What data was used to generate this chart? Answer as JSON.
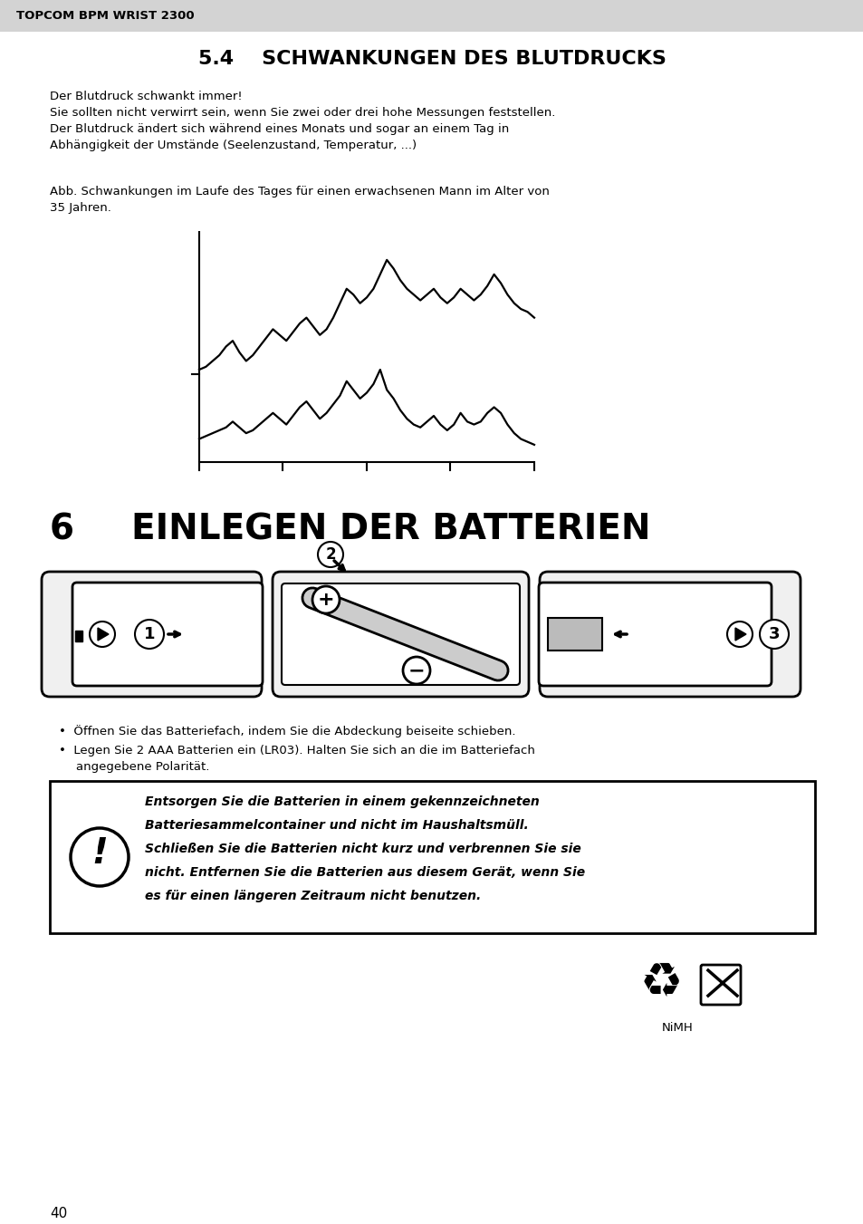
{
  "bg_color": "#ffffff",
  "header_bg": "#d3d3d3",
  "header_text": "TOPCOM BPM WRIST 2300",
  "section_title_num": "5.4",
  "section_title_text": "SCHWANKUNGEN DES BLUTDRUCKS",
  "para1_lines": [
    "Der Blutdruck schwankt immer!",
    "Sie sollten nicht verwirrt sein, wenn Sie zwei oder drei hohe Messungen feststellen.",
    "Der Blutdruck ändert sich während eines Monats und sogar an einem Tag in",
    "Abhängigkeit der Umstände (Seelenzustand, Temperatur, ...)"
  ],
  "para2_lines": [
    "Abb. Schwankungen im Laufe des Tages für einen erwachsenen Mann im Alter von",
    "35 Jahren."
  ],
  "section2_num": "6",
  "section2_text": "EINLEGEN DER BATTERIEN",
  "bullet1": "•  Öffnen Sie das Batteriefach, indem Sie die Abdeckung beiseite schieben.",
  "bullet2_line1": "•  Legen Sie 2 AAA Batterien ein (LR03). Halten Sie sich an die im Batteriefach",
  "bullet2_line2": "    angegebene Polarität.",
  "warning_lines": [
    "Entsorgen Sie die Batterien in einem gekennzeichneten",
    "Batteriesammelcontainer und nicht im Haushaltsmüll.",
    "Schließen Sie die Batterien nicht kurz und verbrennen Sie sie",
    "nicht. Entfernen Sie die Batterien aus diesem Gerät, wenn Sie",
    "es für einen längeren Zeitraum nicht benutzen."
  ],
  "page_number": "40",
  "upper_line_y": [
    62,
    63,
    65,
    67,
    70,
    72,
    68,
    65,
    67,
    70,
    73,
    76,
    74,
    72,
    75,
    78,
    80,
    77,
    74,
    76,
    80,
    85,
    90,
    88,
    85,
    87,
    90,
    95,
    100,
    97,
    93,
    90,
    88,
    86,
    88,
    90,
    87,
    85,
    87,
    90,
    88,
    86,
    88,
    91,
    95,
    92,
    88,
    85,
    83,
    82,
    80
  ],
  "lower_line_y": [
    38,
    39,
    40,
    41,
    42,
    44,
    42,
    40,
    41,
    43,
    45,
    47,
    45,
    43,
    46,
    49,
    51,
    48,
    45,
    47,
    50,
    53,
    58,
    55,
    52,
    54,
    57,
    62,
    55,
    52,
    48,
    45,
    43,
    42,
    44,
    46,
    43,
    41,
    43,
    47,
    44,
    43,
    44,
    47,
    49,
    47,
    43,
    40,
    38,
    37,
    36
  ]
}
